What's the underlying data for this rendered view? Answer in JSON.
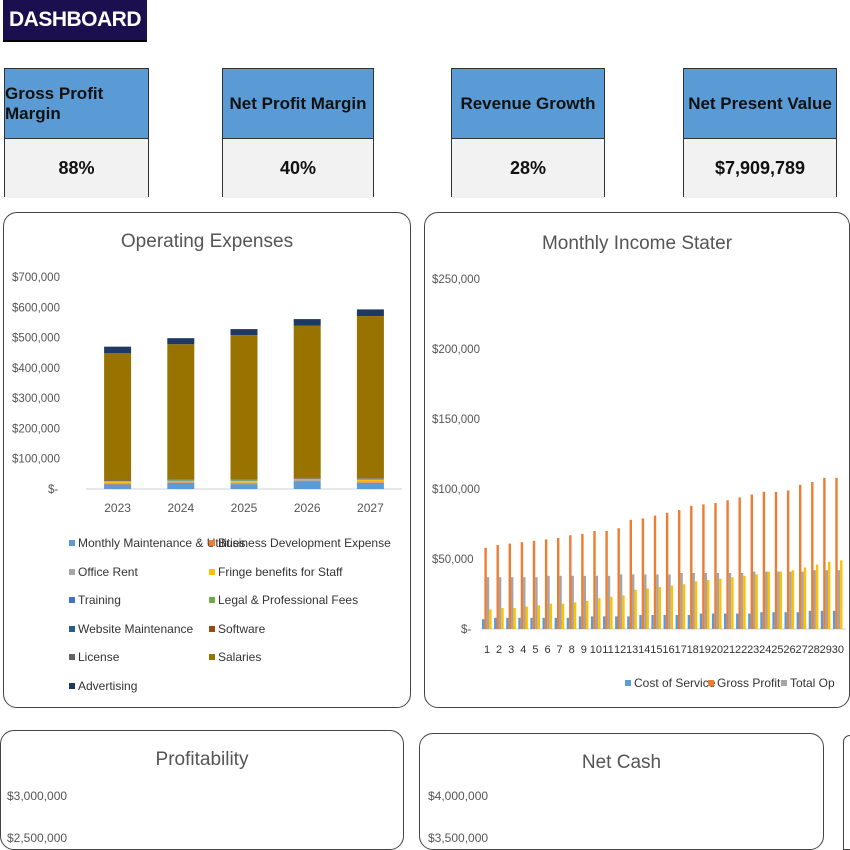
{
  "header": {
    "title": "DASHBOARD"
  },
  "kpis": [
    {
      "label": "Gross Profit Margin",
      "value": "88%"
    },
    {
      "label": "Net Profit Margin",
      "value": "40%"
    },
    {
      "label": "Revenue Growth",
      "value": "28%"
    },
    {
      "label": "Net Present Value",
      "value": "$7,909,789"
    }
  ],
  "colors": {
    "title_bg": "#1c0f4f",
    "kpi_header": "#5b9bd5",
    "kpi_value_bg": "#f2f2f2"
  },
  "chart_data": [
    {
      "type": "bar",
      "stacked": true,
      "title": "Operating Expenses",
      "categories": [
        "2023",
        "2024",
        "2025",
        "2026",
        "2027"
      ],
      "yticks": [
        "$-",
        "$100,000",
        "$200,000",
        "$300,000",
        "$400,000",
        "$500,000",
        "$600,000",
        "$700,000"
      ],
      "ylim": [
        0,
        700000
      ],
      "legend_position": "bottom",
      "series": [
        {
          "name": "Monthly Maintenance & Utilities",
          "color": "#5b9bd5",
          "values": [
            15000,
            20000,
            16000,
            25000,
            20000
          ]
        },
        {
          "name": "Business Development Expense",
          "color": "#ed7d31",
          "values": [
            2000,
            2000,
            2000,
            2000,
            2000
          ]
        },
        {
          "name": "Office Rent",
          "color": "#a5a5a5",
          "values": [
            3000,
            3000,
            3000,
            3000,
            3000
          ]
        },
        {
          "name": "Fringe benefits for Staff",
          "color": "#ffc000",
          "values": [
            5000,
            2000,
            6000,
            2000,
            5000
          ]
        },
        {
          "name": "Training",
          "color": "#4472c4",
          "values": [
            1000,
            1000,
            1000,
            1000,
            1000
          ]
        },
        {
          "name": "Legal & Professional Fees",
          "color": "#70ad47",
          "values": [
            1000,
            2000,
            2000,
            1000,
            2000
          ]
        },
        {
          "name": "Website  Maintenance",
          "color": "#255e91",
          "values": [
            1000,
            1000,
            1000,
            1000,
            1000
          ]
        },
        {
          "name": "Software",
          "color": "#9e480e",
          "values": [
            4000,
            1000,
            1000,
            3000,
            1000
          ]
        },
        {
          "name": "License",
          "color": "#636363",
          "values": [
            1000,
            1000,
            1000,
            1000,
            1000
          ]
        },
        {
          "name": "Salaries",
          "color": "#997300",
          "values": [
            415000,
            445000,
            475000,
            500000,
            535000
          ]
        },
        {
          "name": "Advertising",
          "color": "#1f3864",
          "values": [
            22000,
            20000,
            20000,
            22000,
            22000
          ]
        }
      ]
    },
    {
      "type": "bar",
      "title": "Monthly Income Stater",
      "categories": [
        "1",
        "2",
        "3",
        "4",
        "5",
        "6",
        "7",
        "8",
        "9",
        "10",
        "11",
        "12",
        "13",
        "14",
        "15",
        "16",
        "17",
        "18",
        "19",
        "20",
        "21",
        "22",
        "23",
        "24",
        "25",
        "26",
        "27",
        "28",
        "29",
        "30"
      ],
      "yticks": [
        "$-",
        "$50,000",
        "$100,000",
        "$150,000",
        "$200,000",
        "$250,000"
      ],
      "ylim": [
        0,
        250000
      ],
      "legend_position": "bottom",
      "series": [
        {
          "name": "Cost of Service",
          "color": "#5b9bd5",
          "values": [
            7000,
            8000,
            8000,
            8000,
            8000,
            8000,
            8000,
            8000,
            9000,
            9000,
            9000,
            9000,
            9000,
            10000,
            10000,
            10000,
            10000,
            10000,
            11000,
            11000,
            11000,
            11000,
            11000,
            12000,
            12000,
            12000,
            12000,
            13000,
            13000,
            13000
          ]
        },
        {
          "name": "Gross Profit",
          "color": "#ed7d31",
          "values": [
            58000,
            60000,
            61000,
            62000,
            63000,
            64000,
            65000,
            67000,
            68000,
            70000,
            70000,
            72000,
            78000,
            79000,
            81000,
            83000,
            85000,
            88000,
            89000,
            90000,
            92000,
            94000,
            96000,
            98000,
            98000,
            99000,
            103000,
            105000,
            108000,
            108000
          ]
        },
        {
          "name": "Total Op",
          "color": "#a5a5a5",
          "values": [
            37000,
            37000,
            37000,
            37000,
            37000,
            38000,
            38000,
            38000,
            38000,
            38000,
            38000,
            39000,
            39000,
            39000,
            39000,
            39000,
            40000,
            40000,
            40000,
            40000,
            40000,
            40000,
            41000,
            41000,
            41000,
            41000,
            41000,
            42000,
            42000,
            42000
          ]
        },
        {
          "color": "#ffc000",
          "values": [
            14000,
            15000,
            15000,
            16000,
            17000,
            18000,
            18000,
            19000,
            20000,
            22000,
            23000,
            24000,
            28000,
            29000,
            30000,
            31000,
            32000,
            34000,
            35000,
            36000,
            37000,
            38000,
            39000,
            41000,
            41000,
            42000,
            44000,
            46000,
            48000,
            49000
          ]
        }
      ]
    },
    {
      "type": "bar",
      "title": "Profitability",
      "yticks": [
        "$3,000,000",
        "$2,500,000"
      ]
    },
    {
      "type": "bar",
      "title": "Net Cash",
      "yticks": [
        "$4,000,000",
        "$3,500,000"
      ]
    }
  ]
}
